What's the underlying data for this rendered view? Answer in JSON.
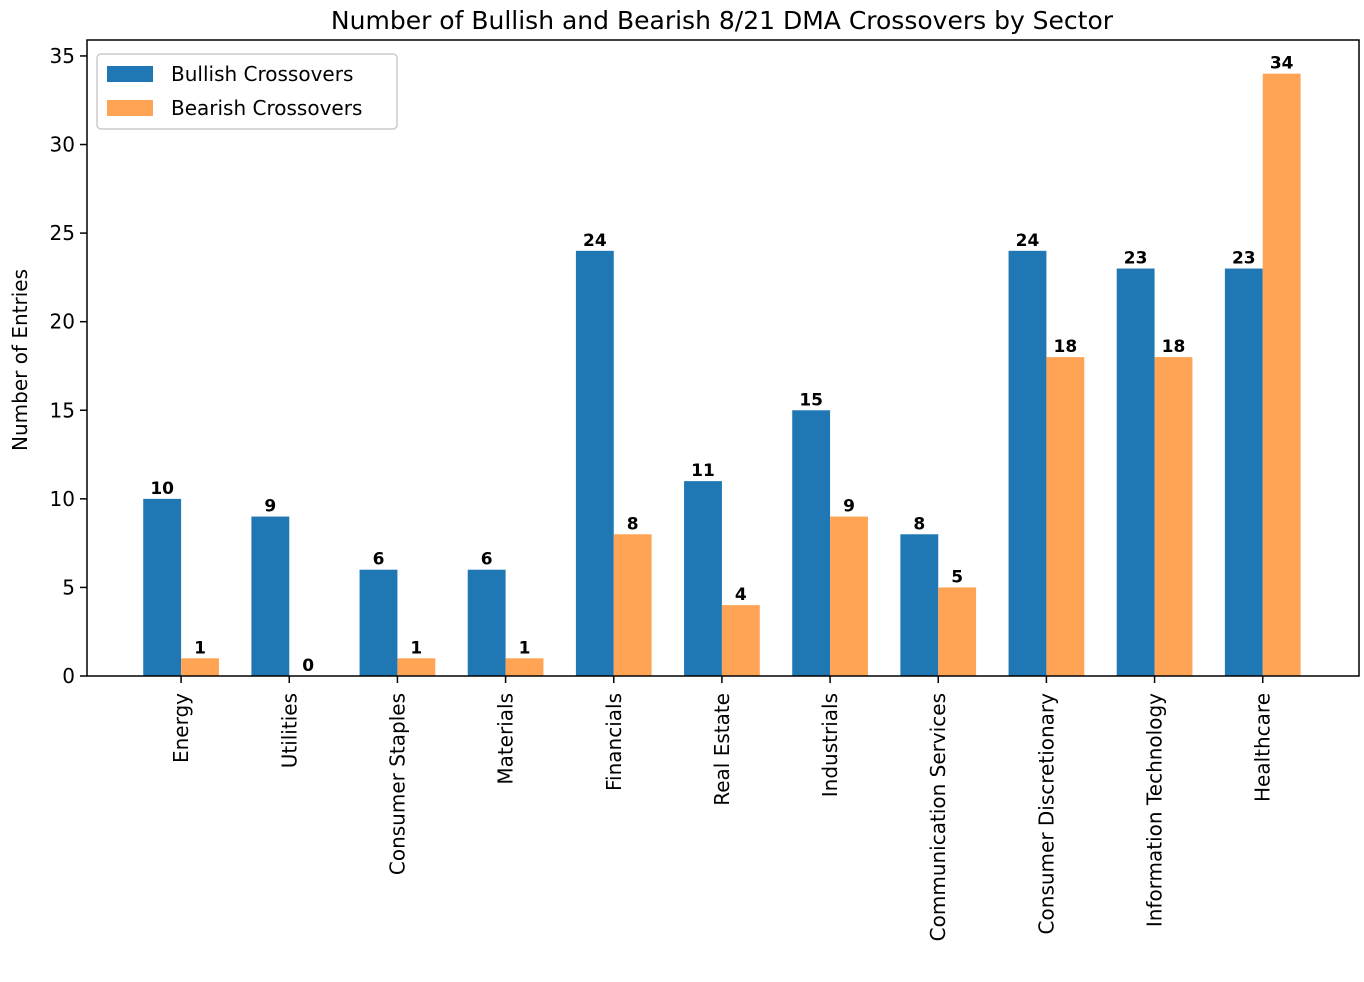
{
  "chart_data": {
    "type": "bar",
    "title": "Number of Bullish and Bearish 8/21 DMA Crossovers by Sector",
    "xlabel": "",
    "ylabel": "Number of Entries",
    "ylim": [
      0,
      35.9
    ],
    "yticks": [
      0,
      5,
      10,
      15,
      20,
      25,
      30,
      35
    ],
    "grid": false,
    "legend_position": "top-left",
    "categories": [
      "Energy",
      "Utilities",
      "Consumer Staples",
      "Materials",
      "Financials",
      "Real Estate",
      "Industrials",
      "Communication Services",
      "Consumer Discretionary",
      "Information Technology",
      "Healthcare"
    ],
    "series": [
      {
        "name": "Bullish Crossovers",
        "color": "#1f77b4",
        "values": [
          10,
          9,
          6,
          6,
          24,
          11,
          15,
          8,
          24,
          23,
          23
        ]
      },
      {
        "name": "Bearish Crossovers",
        "color": "#ffa354",
        "values": [
          1,
          0,
          1,
          1,
          8,
          4,
          9,
          5,
          18,
          18,
          34
        ]
      }
    ]
  }
}
